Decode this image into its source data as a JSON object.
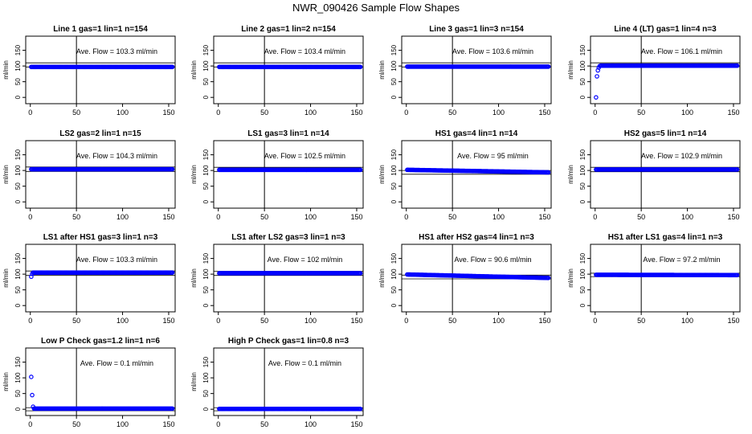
{
  "figure": {
    "title": "NWR_090426  Sample Flow Shapes",
    "marker_color": "#0000ff",
    "ylabel": "ml/min",
    "x_ticks": [
      0,
      50,
      100,
      150
    ],
    "y_ticks": [
      0,
      50,
      100,
      150
    ],
    "xlim": [
      -5,
      157
    ],
    "ylim": [
      -20,
      195
    ],
    "vline_x": 50
  },
  "chart_data": [
    {
      "type": "scatter",
      "title": "Line 1 gas=1 lin=1 n=154",
      "annotation": "Ave. Flow =  103.3  ml/min",
      "avg": 103.3,
      "hlines": [
        97,
        110
      ],
      "profile": "flat",
      "x": [
        1,
        154
      ],
      "y": [
        97,
        97
      ]
    },
    {
      "type": "scatter",
      "title": "Line 2 gas=1 lin=2 n=154",
      "annotation": "Ave. Flow =  103.4  ml/min",
      "avg": 103.4,
      "hlines": [
        97,
        110
      ],
      "profile": "flat",
      "x": [
        1,
        154
      ],
      "y": [
        97,
        97
      ]
    },
    {
      "type": "scatter",
      "title": "Line 3 gas=1 lin=3 n=154",
      "annotation": "Ave. Flow =  103.6  ml/min",
      "avg": 103.6,
      "hlines": [
        97,
        110
      ],
      "profile": "flat",
      "x": [
        1,
        154
      ],
      "y": [
        98,
        98
      ]
    },
    {
      "type": "scatter",
      "title": "Line 4 (LT) gas=1 lin=4 n=3",
      "annotation": "Ave. Flow =  106.1  ml/min",
      "avg": 106.1,
      "hlines": [
        98,
        110
      ],
      "profile": "ramp",
      "x": [
        1,
        2,
        3,
        4,
        5,
        6,
        154
      ],
      "y": [
        0,
        67,
        86,
        95,
        100,
        101,
        101
      ]
    },
    {
      "type": "scatter",
      "title": "LS2 gas=2 lin=1 n=15",
      "annotation": "Ave. Flow =  104.3  ml/min",
      "avg": 104.3,
      "hlines": [
        97,
        111
      ],
      "profile": "flat",
      "x": [
        1,
        154
      ],
      "y": [
        104,
        104
      ]
    },
    {
      "type": "scatter",
      "title": "LS1 gas=3 lin=1 n=14",
      "annotation": "Ave. Flow =  102.5  ml/min",
      "avg": 102.5,
      "hlines": [
        97,
        110
      ],
      "profile": "flat",
      "x": [
        1,
        154
      ],
      "y": [
        102,
        102
      ]
    },
    {
      "type": "scatter",
      "title": "HS1 gas=4 lin=1 n=14",
      "annotation": "Ave. Flow =  95  ml/min",
      "avg": 95,
      "hlines": [
        88,
        100
      ],
      "profile": "decay",
      "x": [
        1,
        154
      ],
      "y": [
        102,
        94
      ]
    },
    {
      "type": "scatter",
      "title": "HS2 gas=5 lin=1 n=14",
      "annotation": "Ave. Flow =  102.9  ml/min",
      "avg": 102.9,
      "hlines": [
        96,
        110
      ],
      "profile": "flat",
      "x": [
        1,
        154
      ],
      "y": [
        103,
        103
      ]
    },
    {
      "type": "scatter",
      "title": "LS1 after HS1 gas=3 lin=1 n=3",
      "annotation": "Ave. Flow =  103.3  ml/min",
      "avg": 103.3,
      "hlines": [
        96,
        110
      ],
      "profile": "step",
      "x": [
        1,
        2,
        3,
        154
      ],
      "y": [
        92,
        101,
        105,
        105
      ]
    },
    {
      "type": "scatter",
      "title": "LS1 after LS2 gas=3 lin=1 n=3",
      "annotation": "Ave. Flow =  102  ml/min",
      "avg": 102,
      "hlines": [
        96,
        109
      ],
      "profile": "flat",
      "x": [
        1,
        154
      ],
      "y": [
        103,
        103
      ]
    },
    {
      "type": "scatter",
      "title": "HS1 after HS2 gas=4 lin=1 n=3",
      "annotation": "Ave. Flow =  90.6  ml/min",
      "avg": 90.6,
      "hlines": [
        85,
        97
      ],
      "profile": "decay",
      "x": [
        1,
        154
      ],
      "y": [
        99,
        88
      ]
    },
    {
      "type": "scatter",
      "title": "HS1 after LS1 gas=4 lin=1 n=3",
      "annotation": "Ave. Flow =  97.2  ml/min",
      "avg": 97.2,
      "hlines": [
        92,
        103
      ],
      "profile": "flat",
      "x": [
        1,
        154
      ],
      "y": [
        98,
        97
      ]
    },
    {
      "type": "scatter",
      "title": "Low P Check gas=1.2 lin=1 n=6",
      "annotation": "Ave. Flow =  0.1  ml/min",
      "avg": 0.1,
      "hlines": [
        -5,
        5
      ],
      "profile": "spike",
      "x": [
        1,
        2,
        3,
        4,
        154
      ],
      "y": [
        103,
        45,
        8,
        2,
        2
      ]
    },
    {
      "type": "scatter",
      "title": "High P Check gas=1 lin=0.8 n=3",
      "annotation": "Ave. Flow =  0.1  ml/min",
      "avg": 0.1,
      "hlines": [
        -5,
        5
      ],
      "profile": "flat",
      "x": [
        1,
        154
      ],
      "y": [
        1,
        1
      ]
    }
  ]
}
